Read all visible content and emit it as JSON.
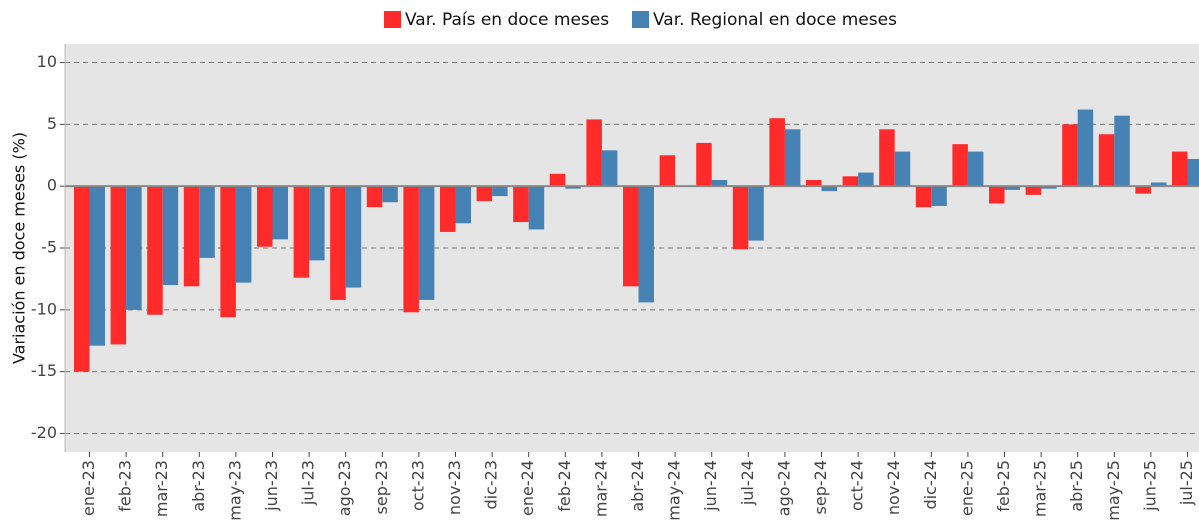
{
  "chart_data": {
    "type": "bar",
    "ylabel": "Variación en doce meses (%)",
    "categories": [
      "ene-23",
      "feb-23",
      "mar-23",
      "abr-23",
      "may-23",
      "jun-23",
      "jul-23",
      "ago-23",
      "sep-23",
      "oct-23",
      "nov-23",
      "dic-23",
      "ene-24",
      "feb-24",
      "mar-24",
      "abr-24",
      "may-24",
      "jun-24",
      "jul-24",
      "ago-24",
      "sep-24",
      "oct-24",
      "nov-24",
      "dic-24",
      "ene-25",
      "feb-25",
      "mar-25",
      "abr-25",
      "may-25",
      "jun-25",
      "jul-25"
    ],
    "series": [
      {
        "name": "Var. País en doce meses",
        "color": "#ff2a2a",
        "values": [
          -15.0,
          -12.8,
          -10.4,
          -8.1,
          -10.6,
          -4.9,
          -7.4,
          -9.2,
          -1.7,
          -10.2,
          -3.7,
          -1.2,
          -2.9,
          1.0,
          5.4,
          -8.1,
          2.5,
          3.5,
          -5.1,
          5.5,
          0.5,
          0.8,
          4.6,
          -1.7,
          3.4,
          -1.4,
          -0.7,
          5.0,
          4.2,
          -0.6,
          2.8
        ]
      },
      {
        "name": "Var. Regional en doce meses",
        "color": "#4682b4",
        "values": [
          -12.9,
          -10.0,
          -8.0,
          -5.8,
          -7.8,
          -4.3,
          -6.0,
          -8.2,
          -1.3,
          -9.2,
          -3.0,
          -0.8,
          -3.5,
          -0.2,
          2.9,
          -9.4,
          0,
          0.5,
          -4.4,
          4.6,
          -0.4,
          1.1,
          2.8,
          -1.6,
          2.8,
          -0.3,
          -0.2,
          6.2,
          5.7,
          0.3,
          2.2
        ]
      }
    ],
    "ylim": [
      -21.5,
      11.5
    ],
    "yticks": [
      -20,
      -15,
      -10,
      -5,
      0,
      5,
      10
    ],
    "grid": true,
    "legend": "top"
  }
}
